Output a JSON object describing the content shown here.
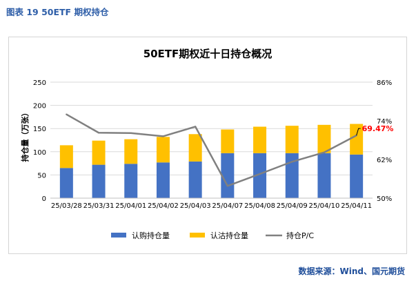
{
  "figure": {
    "caption": "图表 19 50ETF 期权持仓",
    "source": "数据来源：Wind、国元期货"
  },
  "colors": {
    "call": "#4472c4",
    "put": "#ffc000",
    "pc_line": "#808080",
    "last_label": "#ff0000",
    "grid": "#d9d9d9",
    "caption": "#2e5ea8"
  },
  "chart_data": {
    "type": "bar",
    "stacked": true,
    "title": "50ETF期权近十日持仓概况",
    "categories": [
      "25/03/28",
      "25/03/31",
      "25/04/01",
      "25/04/02",
      "25/04/03",
      "25/04/07",
      "25/04/08",
      "25/04/09",
      "25/04/10",
      "25/04/11"
    ],
    "ylabel": "持仓量（万张）",
    "ylim": [
      0,
      250
    ],
    "yticks": [
      0,
      50,
      100,
      150,
      200,
      250
    ],
    "y2lim": [
      50,
      86
    ],
    "y2ticks": [
      "50%",
      "62%",
      "74%",
      "86%"
    ],
    "series": [
      {
        "name": "认购持仓量",
        "type": "bar",
        "values": [
          65,
          72,
          74,
          77,
          79,
          97,
          97,
          97,
          97,
          94
        ]
      },
      {
        "name": "认沽持仓量",
        "type": "bar",
        "values": [
          49,
          52,
          53,
          55,
          59,
          51,
          57,
          59,
          61,
          66
        ]
      },
      {
        "name": "持仓P/C",
        "type": "line",
        "axis": "right",
        "values": [
          76.0,
          70.3,
          70.2,
          69.2,
          72.2,
          53.8,
          57.5,
          61.3,
          64.2,
          69.47
        ]
      }
    ],
    "annotation": {
      "index": 9,
      "text": "69.47%"
    },
    "legend_position": "bottom",
    "grid": true
  }
}
